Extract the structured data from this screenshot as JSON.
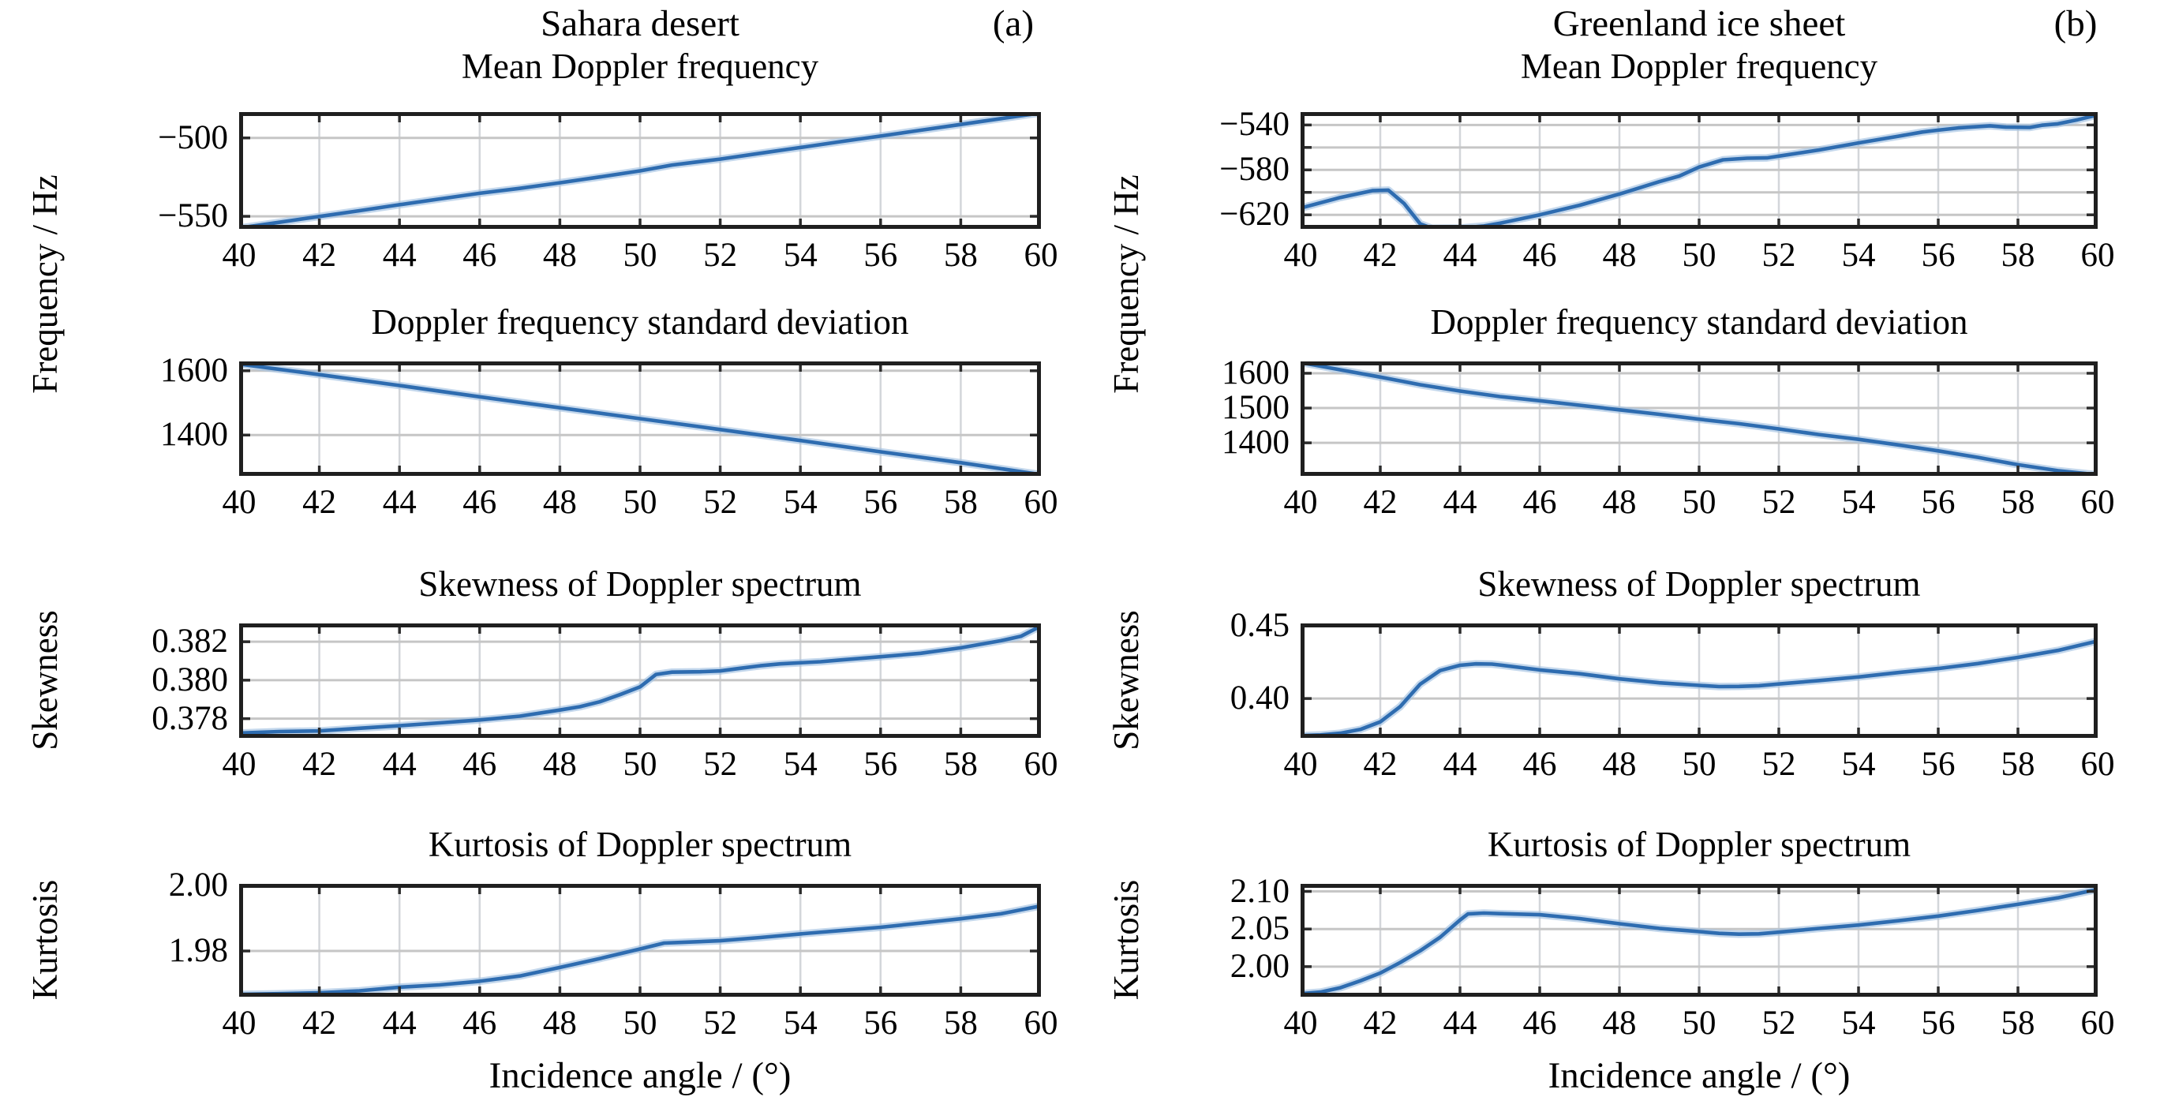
{
  "figure": {
    "columns": [
      {
        "id": "a",
        "title": "Sahara desert",
        "panel_label": "(a)",
        "ylabel_freq": "Frequency / Hz",
        "xlabel": "Incidence angle / (°)"
      },
      {
        "id": "b",
        "title": "Greenland ice sheet",
        "panel_label": "(b)",
        "ylabel_freq": "Frequency / Hz",
        "xlabel": "Incidence angle / (°)"
      }
    ],
    "axes_shared": {
      "xlim": [
        40,
        60
      ],
      "xticks": [
        40,
        42,
        44,
        46,
        48,
        50,
        52,
        54,
        56,
        58,
        60
      ],
      "xtick_labels": [
        "40",
        "42",
        "44",
        "46",
        "48",
        "50",
        "52",
        "54",
        "56",
        "58",
        "60"
      ],
      "grid": "on",
      "legend": "none"
    }
  },
  "colors": {
    "line": "#2e6cb0",
    "line_halo": "#a3c2e2",
    "axis_border": "#1f1f1f",
    "tick_stub": "#2b2b2b",
    "hgrid": "#c6c6c6",
    "vgrid": "#d3d6da",
    "background": "#ffffff",
    "text": "#000000"
  },
  "chart_data": [
    {
      "id": "a-mean",
      "column": "a",
      "row": 1,
      "type": "line",
      "title": "Mean Doppler frequency",
      "ylim": [
        -558,
        -483.5
      ],
      "yticks": [
        {
          "v": -500,
          "label": "−500"
        },
        {
          "v": -550,
          "label": "−550"
        }
      ],
      "ygrid": [
        -500,
        -550
      ],
      "x": [
        40,
        41,
        42,
        43,
        44,
        45,
        46,
        47,
        48,
        49,
        50,
        50.8,
        52,
        53,
        54,
        55,
        56,
        57,
        58,
        59,
        60
      ],
      "y": [
        -557.5,
        -553.8,
        -550.1,
        -546.4,
        -542.6,
        -538.9,
        -535.3,
        -532.2,
        -528.6,
        -524.9,
        -521.0,
        -517.3,
        -513.5,
        -509.8,
        -506.1,
        -502.4,
        -498.8,
        -495.1,
        -491.4,
        -487.7,
        -484.0
      ]
    },
    {
      "id": "a-std",
      "column": "a",
      "row": 2,
      "type": "line",
      "title": "Doppler frequency standard deviation",
      "ylim": [
        1273,
        1629
      ],
      "yticks": [
        {
          "v": 1600,
          "label": "1600"
        },
        {
          "v": 1400,
          "label": "1400"
        }
      ],
      "ygrid": [
        1600,
        1400
      ],
      "x": [
        40,
        42,
        44,
        46,
        48,
        50,
        52,
        54,
        56,
        58,
        60
      ],
      "y": [
        1621,
        1588,
        1554,
        1519,
        1485,
        1451,
        1417,
        1383,
        1348,
        1314,
        1277
      ]
    },
    {
      "id": "a-skew",
      "column": "a",
      "row": 3,
      "type": "line",
      "title": "Skewness of Doppler spectrum",
      "ylabel": "Skewness",
      "ylim": [
        0.377,
        0.38295
      ],
      "yticks": [
        {
          "v": 0.382,
          "label": "0.382"
        },
        {
          "v": 0.38,
          "label": "0.380"
        },
        {
          "v": 0.378,
          "label": "0.378"
        }
      ],
      "ygrid": [
        0.382,
        0.38,
        0.378
      ],
      "x": [
        40,
        41,
        42,
        43,
        44,
        45,
        46,
        47,
        48,
        48.5,
        49,
        49.5,
        50,
        50.4,
        50.8,
        51.5,
        52,
        52.5,
        53,
        53.5,
        54.5,
        55,
        56,
        57,
        58,
        59,
        59.5,
        60
      ],
      "y": [
        0.37725,
        0.37733,
        0.37736,
        0.3775,
        0.37763,
        0.37778,
        0.37793,
        0.37813,
        0.37845,
        0.37862,
        0.37888,
        0.37925,
        0.37965,
        0.3803,
        0.38042,
        0.38044,
        0.38048,
        0.38062,
        0.38075,
        0.38085,
        0.38096,
        0.38105,
        0.38122,
        0.3814,
        0.38168,
        0.38205,
        0.38228,
        0.38282
      ]
    },
    {
      "id": "a-kurt",
      "column": "a",
      "row": 4,
      "type": "line",
      "title": "Kurtosis of Doppler spectrum",
      "ylabel": "Kurtosis",
      "ylim": [
        1.9661,
        2.0004
      ],
      "yticks": [
        {
          "v": 2.0,
          "label": "2.00"
        },
        {
          "v": 1.98,
          "label": "1.98"
        }
      ],
      "ygrid": [
        2.0,
        1.98
      ],
      "x": [
        40,
        41,
        42,
        43,
        44,
        45,
        46,
        47,
        48,
        49,
        50,
        50.6,
        51,
        52,
        53,
        54,
        55,
        56,
        57,
        58,
        59,
        60
      ],
      "y": [
        1.9668,
        1.967,
        1.9673,
        1.9679,
        1.969,
        1.9697,
        1.9708,
        1.9724,
        1.975,
        1.9777,
        1.9806,
        1.9824,
        1.9826,
        1.9831,
        1.9841,
        1.9852,
        1.9862,
        1.9872,
        1.9885,
        1.9898,
        1.9913,
        1.9937
      ]
    },
    {
      "id": "b-mean",
      "column": "b",
      "row": 1,
      "type": "line",
      "title": "Mean Doppler frequency",
      "ylim": [
        -632.5,
        -528.5
      ],
      "yticks": [
        {
          "v": -540,
          "label": "−540"
        },
        {
          "v": -580,
          "label": "−580"
        },
        {
          "v": -620,
          "label": "−620"
        }
      ],
      "ygrid": [
        -540,
        -560,
        -580,
        -600,
        -620
      ],
      "x": [
        40,
        41,
        41.8,
        42.2,
        42.6,
        43,
        43.3,
        44,
        44.6,
        45,
        46,
        47,
        48,
        48.5,
        49,
        49.5,
        50,
        50.6,
        51.2,
        51.7,
        52,
        53,
        54,
        54.6,
        55,
        55.6,
        56,
        56.5,
        57,
        57.3,
        57.7,
        58.3,
        58.6,
        59,
        59.5,
        60
      ],
      "y": [
        -614,
        -604.5,
        -598.5,
        -598,
        -610,
        -628,
        -632,
        -631.8,
        -630,
        -627.5,
        -620,
        -611.5,
        -601.5,
        -596,
        -590.5,
        -585.5,
        -577.5,
        -571,
        -569.6,
        -569.3,
        -567.7,
        -562.3,
        -556,
        -552.4,
        -550,
        -546.3,
        -544.6,
        -542.6,
        -541.4,
        -540.7,
        -541.9,
        -542.2,
        -540.2,
        -539,
        -535.3,
        -531
      ]
    },
    {
      "id": "b-std",
      "column": "b",
      "row": 2,
      "type": "line",
      "title": "Doppler frequency standard deviation",
      "ylim": [
        1305,
        1634
      ],
      "yticks": [
        {
          "v": 1600,
          "label": "1600"
        },
        {
          "v": 1500,
          "label": "1500"
        },
        {
          "v": 1400,
          "label": "1400"
        }
      ],
      "ygrid": [
        1600,
        1500,
        1400
      ],
      "x": [
        40,
        41,
        42,
        43,
        44,
        45,
        46,
        47,
        48,
        49,
        50,
        51,
        52,
        53,
        54,
        55,
        56,
        57,
        58,
        59,
        60
      ],
      "y": [
        1631,
        1610,
        1589,
        1567,
        1549,
        1533,
        1521,
        1508,
        1495,
        1482,
        1468,
        1455,
        1440,
        1424,
        1410,
        1394,
        1377,
        1358,
        1337,
        1320,
        1308
      ]
    },
    {
      "id": "b-skew",
      "column": "b",
      "row": 3,
      "type": "line",
      "title": "Skewness of Doppler spectrum",
      "ylabel": "Skewness",
      "ylim": [
        0.373,
        0.4515
      ],
      "yticks": [
        {
          "v": 0.45,
          "label": "0.45"
        },
        {
          "v": 0.4,
          "label": "0.40"
        }
      ],
      "ygrid": [
        0.45,
        0.4
      ],
      "x": [
        40,
        40.5,
        41,
        41.5,
        42,
        42.5,
        43,
        43.5,
        44,
        44.4,
        44.8,
        45,
        46,
        47,
        48,
        49,
        50,
        50.5,
        51,
        51.5,
        52,
        53,
        54,
        55,
        56,
        57,
        58,
        59,
        60
      ],
      "y": [
        0.3745,
        0.375,
        0.3762,
        0.3788,
        0.384,
        0.3945,
        0.4098,
        0.4192,
        0.4228,
        0.4238,
        0.4236,
        0.423,
        0.4196,
        0.417,
        0.4135,
        0.4108,
        0.409,
        0.4082,
        0.4083,
        0.4088,
        0.41,
        0.4123,
        0.4148,
        0.4178,
        0.4206,
        0.424,
        0.4282,
        0.433,
        0.4395
      ]
    },
    {
      "id": "b-kurt",
      "column": "b",
      "row": 4,
      "type": "line",
      "title": "Kurtosis of Doppler spectrum",
      "ylabel": "Kurtosis",
      "ylim": [
        1.96,
        2.11
      ],
      "yticks": [
        {
          "v": 2.1,
          "label": "2.10"
        },
        {
          "v": 2.05,
          "label": "2.05"
        },
        {
          "v": 2.0,
          "label": "2.00"
        }
      ],
      "ygrid": [
        2.1,
        2.05,
        2.0
      ],
      "x": [
        40,
        40.5,
        41,
        41.5,
        42,
        42.5,
        43,
        43.5,
        44,
        44.2,
        44.6,
        45,
        46,
        47,
        48,
        49,
        50,
        50.5,
        51,
        51.5,
        52,
        53,
        54,
        55,
        56,
        57,
        58,
        59,
        60
      ],
      "y": [
        1.964,
        1.9662,
        1.972,
        1.9812,
        1.9915,
        2.0055,
        2.021,
        2.039,
        2.062,
        2.07,
        2.0712,
        2.0705,
        2.069,
        2.0638,
        2.057,
        2.0508,
        2.0465,
        2.0442,
        2.0432,
        2.0436,
        2.0458,
        2.0507,
        2.0552,
        2.061,
        2.0672,
        2.0748,
        2.0828,
        2.0914,
        2.1028
      ]
    }
  ]
}
